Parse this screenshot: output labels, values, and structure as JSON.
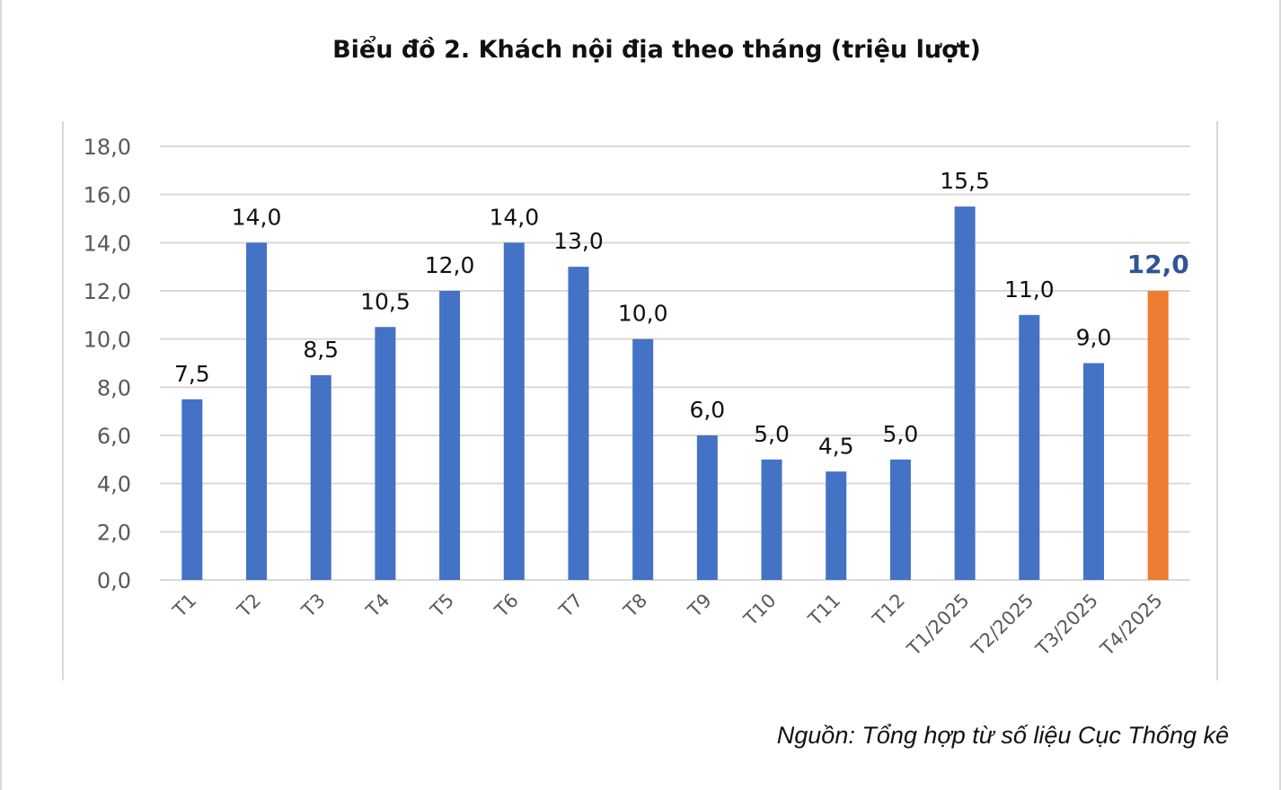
{
  "title": "Biểu đồ 2. Khách nội địa theo tháng (triệu lượt)",
  "source": "Nguồn: Tổng hợp từ số liệu Cục Thống kê",
  "chart_data": {
    "type": "bar",
    "title": "Biểu đồ 2. Khách nội địa theo tháng (triệu lượt)",
    "xlabel": "",
    "ylabel": "",
    "categories": [
      "T1",
      "T2",
      "T3",
      "T4",
      "T5",
      "T6",
      "T7",
      "T8",
      "T9",
      "T10",
      "T11",
      "T12",
      "T1/2025",
      "T2/2025",
      "T3/2025",
      "T4/2025"
    ],
    "values": [
      7.5,
      14.0,
      8.5,
      10.5,
      12.0,
      14.0,
      13.0,
      10.0,
      6.0,
      5.0,
      4.5,
      5.0,
      15.5,
      11.0,
      9.0,
      12.0
    ],
    "data_labels": [
      "7,5",
      "14,0",
      "8,5",
      "10,5",
      "12,0",
      "14,0",
      "13,0",
      "10,0",
      "6,0",
      "5,0",
      "4,5",
      "5,0",
      "15,5",
      "11,0",
      "9,0",
      "12,0"
    ],
    "highlight_index": 15,
    "ylim": [
      0,
      18
    ],
    "yticks": [
      0,
      2,
      4,
      6,
      8,
      10,
      12,
      14,
      16,
      18
    ],
    "ytick_labels": [
      "0,0",
      "2,0",
      "4,0",
      "6,0",
      "8,0",
      "10,0",
      "12,0",
      "14,0",
      "16,0",
      "18,0"
    ],
    "grid": true,
    "legend": "none",
    "colors": {
      "bar": "#4472C4",
      "highlight_bar": "#ED7D31",
      "highlight_label": "#2F5597",
      "grid": "#d9d9d9",
      "tick_text": "#595959",
      "label_text": "#111111"
    }
  }
}
